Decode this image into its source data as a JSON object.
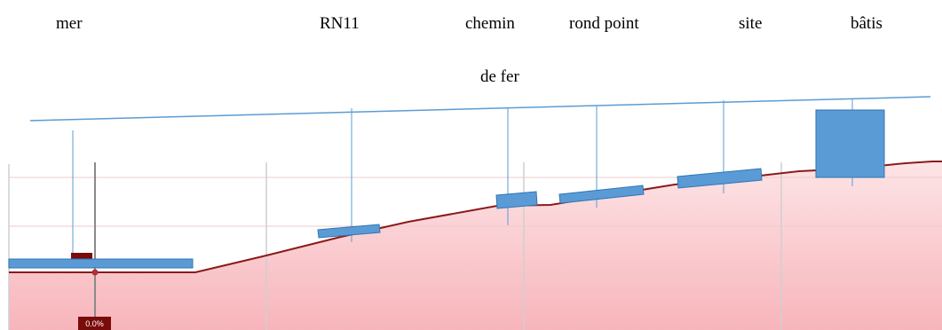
{
  "labels": {
    "sea": "mer",
    "road": "RN11",
    "rail_line1": "chemin",
    "rail_line2": "de fer",
    "roundabout": "rond point",
    "site": "site",
    "buildings": "bâtis"
  },
  "marker": {
    "value": "0.0%"
  },
  "colors": {
    "sight_line": "#5b9bd5",
    "element_fill": "#5b9bd5",
    "element_stroke": "#2e75b6",
    "terrain_line": "#8b1a1a",
    "terrain_fill_top": "#fde4e6",
    "terrain_fill_bottom": "#f7b5bb",
    "marker": "#7a0b0b",
    "grid": "#cfcfcf"
  }
}
